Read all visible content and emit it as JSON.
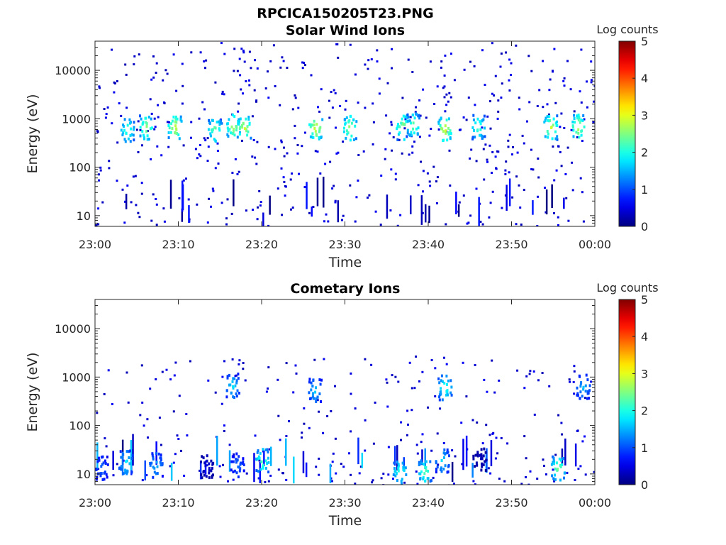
{
  "figure_title": "RPCICA150205T23.PNG",
  "chart_data": [
    {
      "type": "heatmap",
      "title": "Solar Wind Ions",
      "xlabel": "Time",
      "ylabel": "Energy (eV)",
      "x_range": [
        "23:00",
        "00:00"
      ],
      "x_ticks": [
        "23:00",
        "23:10",
        "23:20",
        "23:30",
        "23:40",
        "23:50",
        "00:00"
      ],
      "y_scale": "log",
      "ylim": [
        6,
        40000
      ],
      "y_ticks": [
        "10",
        "100",
        "1000",
        "10000"
      ],
      "colorbar": {
        "label": "Log counts",
        "range": [
          0,
          5
        ],
        "ticks": [
          "0",
          "1",
          "2",
          "3",
          "4",
          "5"
        ]
      },
      "hotspots": [
        {
          "t": 3.8,
          "e": 620,
          "v": 2.3
        },
        {
          "t": 6.0,
          "e": 700,
          "v": 2.7
        },
        {
          "t": 9.5,
          "e": 700,
          "v": 3.0
        },
        {
          "t": 14.3,
          "e": 640,
          "v": 2.5
        },
        {
          "t": 16.5,
          "e": 720,
          "v": 2.8
        },
        {
          "t": 17.8,
          "e": 680,
          "v": 3.0
        },
        {
          "t": 26.4,
          "e": 700,
          "v": 3.1
        },
        {
          "t": 30.5,
          "e": 680,
          "v": 2.8
        },
        {
          "t": 36.9,
          "e": 700,
          "v": 2.8
        },
        {
          "t": 38.1,
          "e": 760,
          "v": 2.5
        },
        {
          "t": 41.9,
          "e": 650,
          "v": 3.1
        },
        {
          "t": 45.9,
          "e": 720,
          "v": 2.4
        },
        {
          "t": 54.6,
          "e": 700,
          "v": 3.0
        },
        {
          "t": 57.9,
          "e": 720,
          "v": 2.9
        }
      ]
    },
    {
      "type": "heatmap",
      "title": "Cometary Ions",
      "xlabel": "Time",
      "ylabel": "Energy (eV)",
      "x_range": [
        "23:00",
        "00:00"
      ],
      "x_ticks": [
        "23:00",
        "23:10",
        "23:20",
        "23:30",
        "23:40",
        "23:50",
        "00:00"
      ],
      "y_scale": "log",
      "ylim": [
        6,
        40000
      ],
      "y_ticks": [
        "10",
        "100",
        "1000",
        "10000"
      ],
      "colorbar": {
        "label": "Log counts",
        "range": [
          0,
          5
        ],
        "ticks": [
          "0",
          "1",
          "2",
          "3",
          "4",
          "5"
        ]
      },
      "hotspots": [
        {
          "t": 0.7,
          "e": 14,
          "v": 1.2
        },
        {
          "t": 3.6,
          "e": 18,
          "v": 1.9
        },
        {
          "t": 7.2,
          "e": 16,
          "v": 1.6
        },
        {
          "t": 13.3,
          "e": 15,
          "v": 0.4
        },
        {
          "t": 16.4,
          "e": 700,
          "v": 1.8
        },
        {
          "t": 17.0,
          "e": 16,
          "v": 1.2
        },
        {
          "t": 20.0,
          "e": 20,
          "v": 2.4
        },
        {
          "t": 26.3,
          "e": 560,
          "v": 1.7
        },
        {
          "t": 36.5,
          "e": 12,
          "v": 2.2
        },
        {
          "t": 39.5,
          "e": 12,
          "v": 2.4
        },
        {
          "t": 41.9,
          "e": 640,
          "v": 2.2
        },
        {
          "t": 41.6,
          "e": 20,
          "v": 1.8
        },
        {
          "t": 46.1,
          "e": 21,
          "v": 0.3
        },
        {
          "t": 55.5,
          "e": 14,
          "v": 2.6
        },
        {
          "t": 58.5,
          "e": 660,
          "v": 1.6
        }
      ]
    }
  ]
}
